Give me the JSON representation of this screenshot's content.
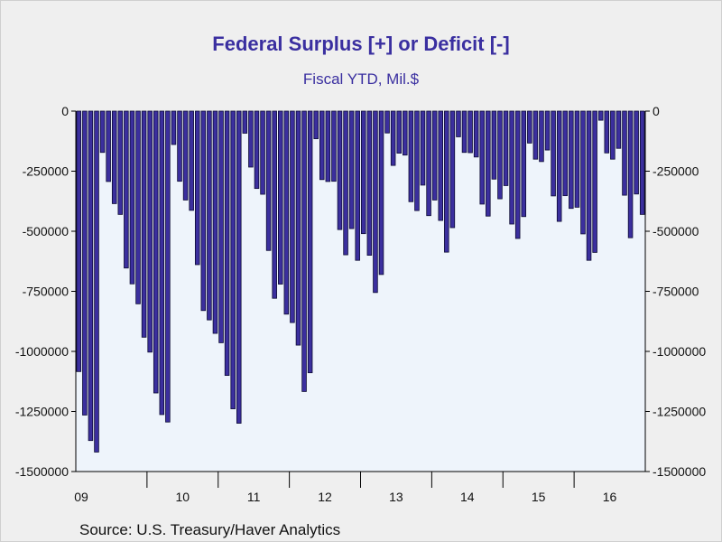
{
  "chart_data": {
    "type": "bar",
    "title": "Federal Surplus [+] or Deficit [-]",
    "subtitle": "Fiscal YTD, Mil.$",
    "source": "Source:  U.S. Treasury/Haver Analytics",
    "ylim": [
      -1500000,
      0
    ],
    "yticks": [
      0,
      -250000,
      -500000,
      -750000,
      -1000000,
      -1250000,
      -1500000
    ],
    "ytick_labels": [
      "0",
      "-250000",
      "-500000",
      "-750000",
      "-1000000",
      "-1250000",
      "-1500000"
    ],
    "year_labels": [
      "09",
      "10",
      "11",
      "12",
      "13",
      "14",
      "15",
      "16"
    ],
    "start": "2009-01",
    "grid": false,
    "legend": "none",
    "colors": {
      "bar_fill": "#3b2f9e",
      "bar_stroke": "#0d0b33",
      "plot_bg": "#eef4fb"
    },
    "values": [
      -1084000,
      -1265000,
      -1371000,
      -1419000,
      -172000,
      -293000,
      -385000,
      -430000,
      -653000,
      -719000,
      -802000,
      -941000,
      -1003000,
      -1173000,
      -1263000,
      -1294000,
      -139000,
      -292000,
      -370000,
      -413000,
      -639000,
      -830000,
      -869000,
      -925000,
      -964000,
      -1100000,
      -1239000,
      -1299000,
      -92000,
      -233000,
      -322000,
      -346000,
      -580000,
      -779000,
      -720000,
      -845000,
      -880000,
      -974000,
      -1167000,
      -1089000,
      -115000,
      -285000,
      -293000,
      -292000,
      -493000,
      -598000,
      -489000,
      -621000,
      -510000,
      -600000,
      -755000,
      -680000,
      -91000,
      -226000,
      -175000,
      -183000,
      -377000,
      -414000,
      -308000,
      -435000,
      -370000,
      -455000,
      -587000,
      -485000,
      -107000,
      -172000,
      -173000,
      -191000,
      -387000,
      -437000,
      -283000,
      -365000,
      -310000,
      -470000,
      -530000,
      -439000,
      -133000,
      -200000,
      -210000,
      -162000,
      -353000,
      -459000,
      -352000,
      -405000,
      -400000,
      -511000,
      -621000,
      -588000,
      -38000,
      -174000,
      -200000,
      -155000,
      -350000,
      -527000,
      -345000,
      -430000
    ]
  }
}
